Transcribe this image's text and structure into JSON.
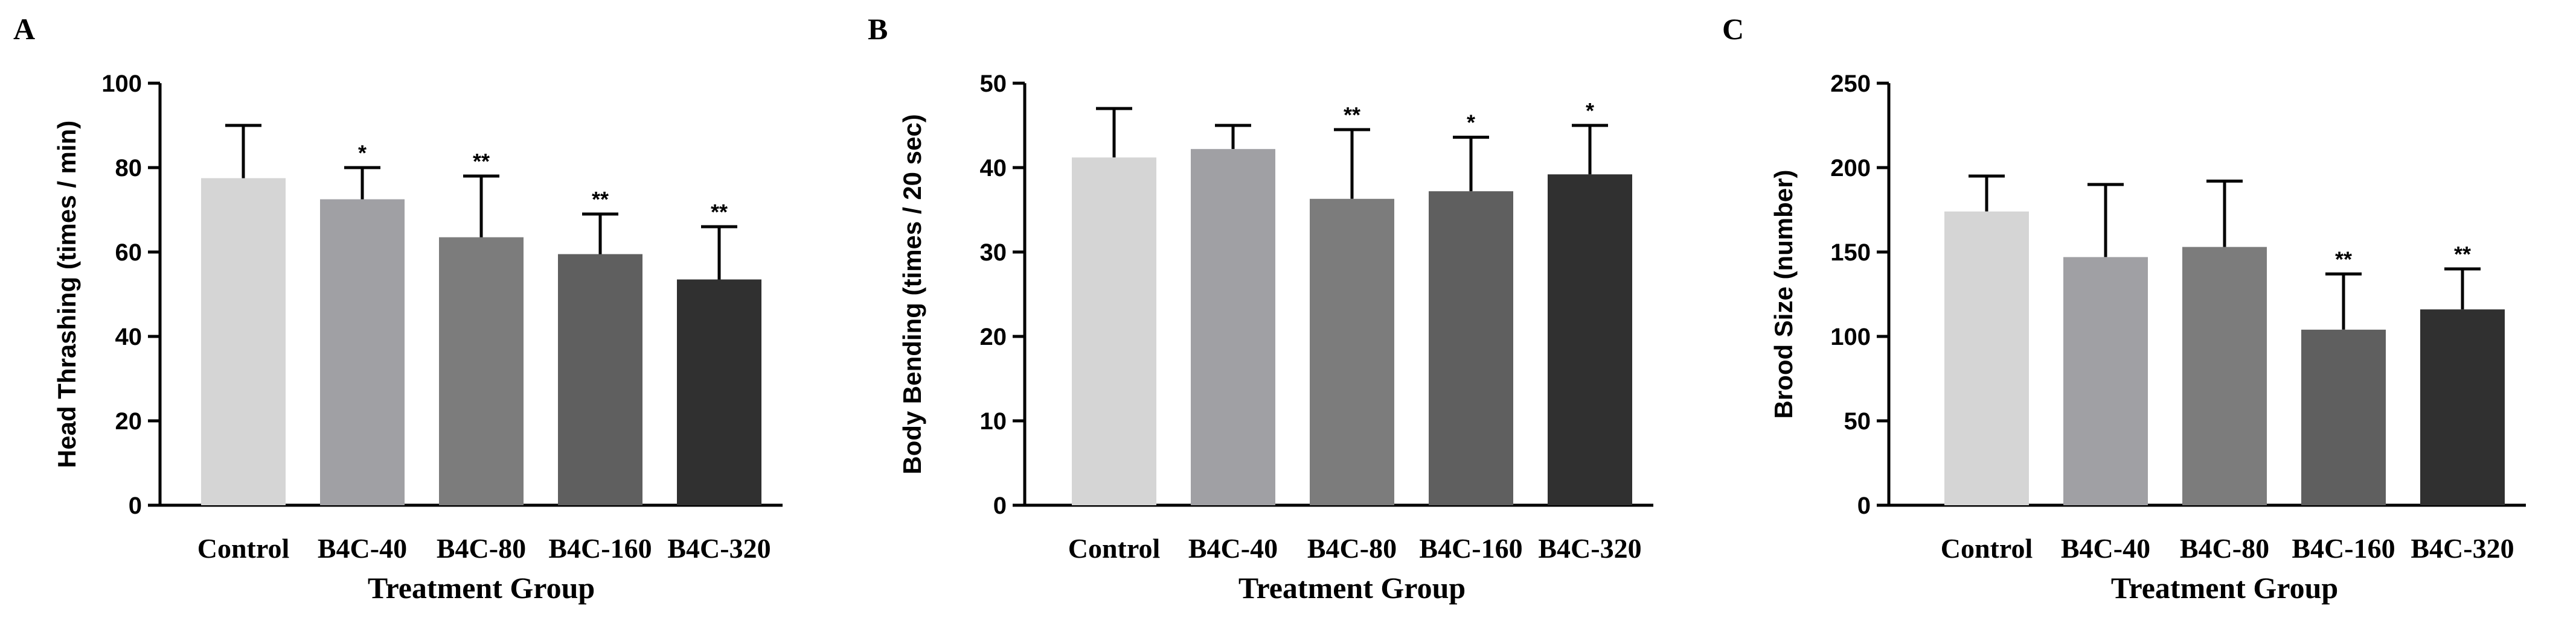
{
  "figure": {
    "panels": [
      {
        "letter": "A",
        "ylabel": "Head Thrashing (times / min)",
        "xlabel": "Treatment Group"
      },
      {
        "letter": "B",
        "ylabel": "Body Bending (times / 20 sec)",
        "xlabel": "Treatment Group"
      },
      {
        "letter": "C",
        "ylabel": "Brood Size (number)",
        "xlabel": "Treatment Group"
      }
    ]
  },
  "chart_data": [
    {
      "panel": "A",
      "type": "bar",
      "title": "",
      "xlabel": "Treatment Group",
      "ylabel": "Head Thrashing (times / min)",
      "categories": [
        "Control",
        "B4C-40",
        "B4C-80",
        "B4C-160",
        "B4C-320"
      ],
      "values": [
        77.5,
        72.5,
        63.5,
        59.5,
        53.5
      ],
      "error_upper": [
        90,
        80,
        78,
        69,
        66
      ],
      "significance": [
        "",
        "*",
        "**",
        "**",
        "**"
      ],
      "colors": [
        "#d5d5d5",
        "#a0a0a4",
        "#7c7c7c",
        "#5f5f5f",
        "#303030"
      ],
      "ylim": [
        0,
        100
      ],
      "yticks": [
        0,
        20,
        40,
        60,
        80,
        100
      ],
      "grid": false,
      "legend": "none"
    },
    {
      "panel": "B",
      "type": "bar",
      "title": "",
      "xlabel": "Treatment Group",
      "ylabel": "Body Bending (times / 20 sec)",
      "categories": [
        "Control",
        "B4C-40",
        "B4C-80",
        "B4C-160",
        "B4C-320"
      ],
      "values": [
        41.2,
        42.2,
        36.3,
        37.2,
        39.2
      ],
      "error_upper": [
        47,
        45,
        44.5,
        43.6,
        45
      ],
      "significance": [
        "",
        "",
        "**",
        "*",
        "*"
      ],
      "colors": [
        "#d5d5d5",
        "#a0a0a4",
        "#7c7c7c",
        "#5f5f5f",
        "#303030"
      ],
      "ylim": [
        0,
        50
      ],
      "yticks": [
        0,
        10,
        20,
        30,
        40,
        50
      ],
      "grid": false,
      "legend": "none"
    },
    {
      "panel": "C",
      "type": "bar",
      "title": "",
      "xlabel": "Treatment Group",
      "ylabel": "Brood Size (number)",
      "categories": [
        "Control",
        "B4C-40",
        "B4C-80",
        "B4C-160",
        "B4C-320"
      ],
      "values": [
        174,
        147,
        153,
        104,
        116
      ],
      "error_upper": [
        195,
        190,
        192,
        137,
        140
      ],
      "significance": [
        "",
        "",
        "",
        "**",
        "**"
      ],
      "colors": [
        "#d5d5d5",
        "#a0a0a4",
        "#7c7c7c",
        "#5f5f5f",
        "#303030"
      ],
      "ylim": [
        0,
        250
      ],
      "yticks": [
        0,
        50,
        100,
        150,
        200,
        250
      ],
      "grid": false,
      "legend": "none"
    }
  ]
}
